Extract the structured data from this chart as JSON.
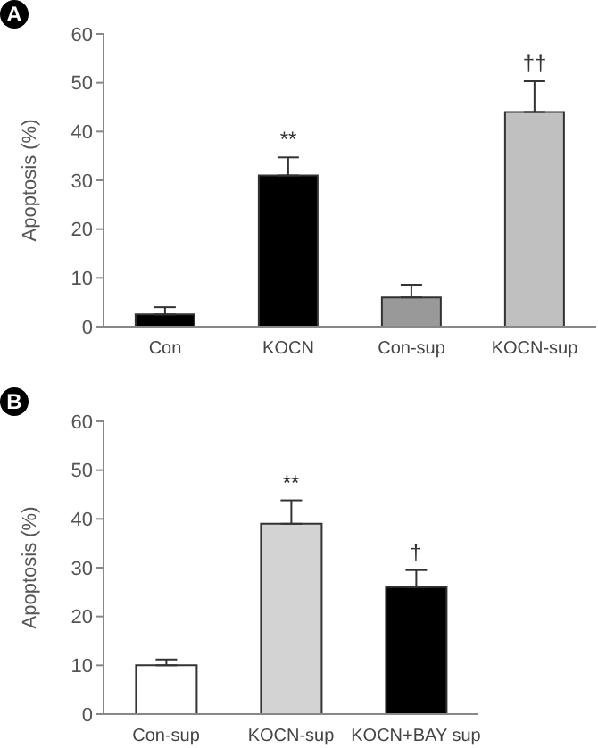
{
  "chart_data": [
    {
      "type": "bar",
      "title": "A",
      "ylabel": "Apoptosis (%)",
      "categories": [
        "Con",
        "KOCN",
        "Con-sup",
        "KOCN-sup"
      ],
      "values": [
        2.5,
        31,
        6,
        44
      ],
      "colors": [
        "#000000",
        "#000000",
        "#999999",
        "#c0c0c0"
      ],
      "errors": [
        [
          2.5,
          4
        ],
        [
          31,
          34.7
        ],
        [
          6,
          8.6
        ],
        [
          44,
          50.3
        ]
      ],
      "ylim": [
        0,
        60
      ],
      "yticks": [
        0,
        10,
        20,
        30,
        40,
        50,
        60
      ],
      "annotations": [
        {
          "text": "**",
          "x": "KOCN",
          "y": 34.7
        },
        {
          "text": "††",
          "x": "KOCN-sup",
          "y": 50.3
        }
      ]
    },
    {
      "type": "bar",
      "title": "B",
      "ylabel": "Apoptosis (%)",
      "categories": [
        "Con-sup",
        "KOCN-sup",
        "KOCN+BAY sup"
      ],
      "values": [
        10,
        39,
        26
      ],
      "colors": [
        "#ffffff",
        "#d3d3d3",
        "#000000"
      ],
      "errors": [
        [
          10,
          11.2
        ],
        [
          39,
          43.8
        ],
        [
          26,
          29.5
        ]
      ],
      "ylim": [
        0,
        60
      ],
      "yticks": [
        0,
        10,
        20,
        30,
        40,
        50,
        60
      ],
      "annotations": [
        {
          "text": "**",
          "x": "KOCN-sup",
          "y": 43.8
        },
        {
          "text": "†",
          "x": "KOCN+BAY sup",
          "y": 29.5
        }
      ]
    }
  ]
}
